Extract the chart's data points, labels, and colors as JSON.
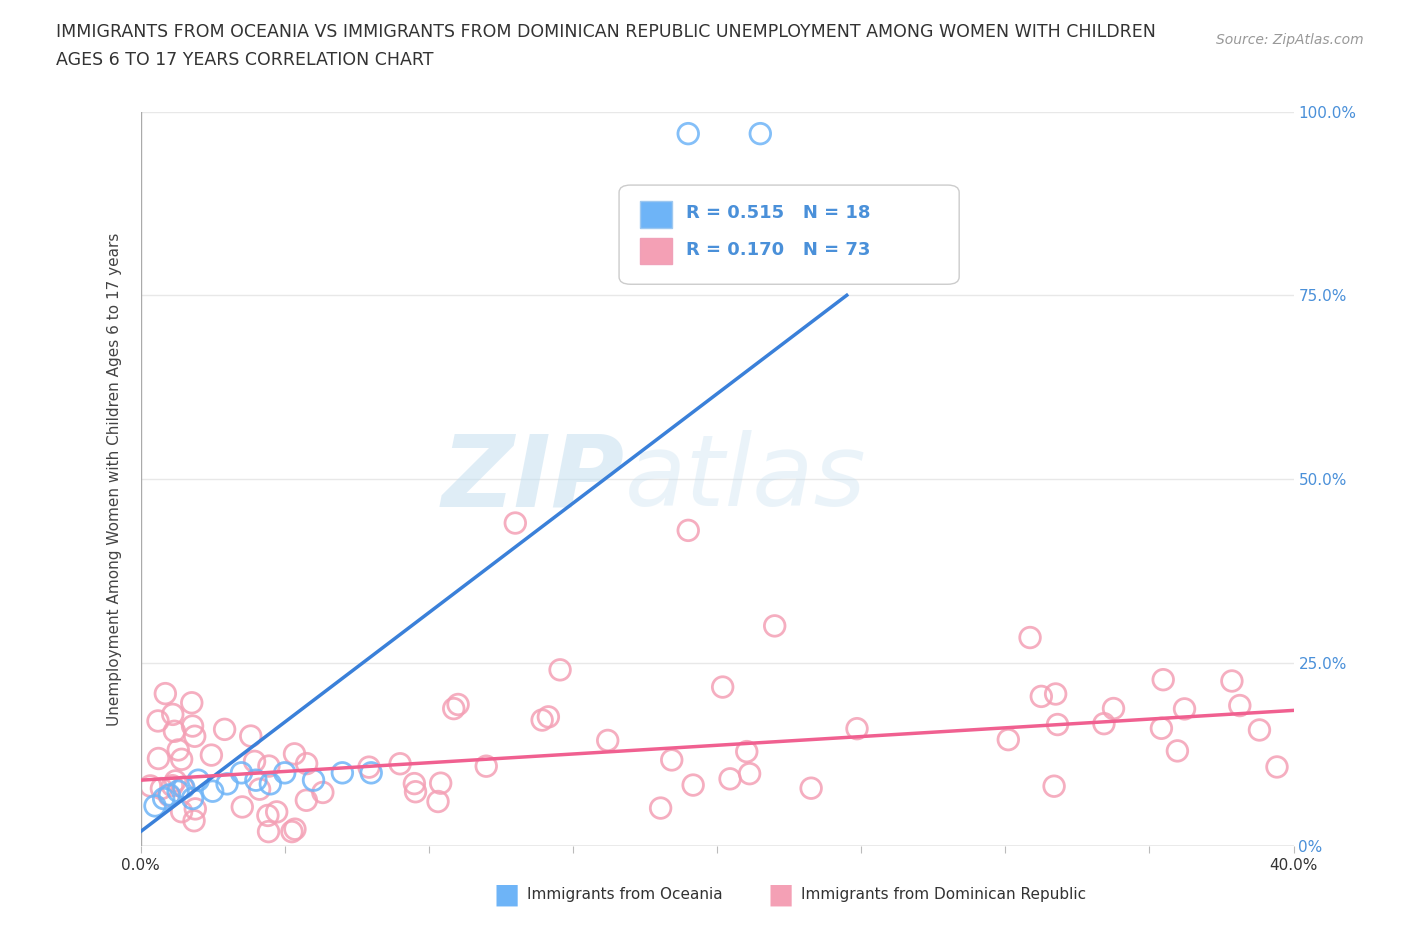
{
  "title_line1": "IMMIGRANTS FROM OCEANIA VS IMMIGRANTS FROM DOMINICAN REPUBLIC UNEMPLOYMENT AMONG WOMEN WITH CHILDREN",
  "title_line2": "AGES 6 TO 17 YEARS CORRELATION CHART",
  "source_text": "Source: ZipAtlas.com",
  "ylabel": "Unemployment Among Women with Children Ages 6 to 17 years",
  "xlim": [
    0.0,
    0.4
  ],
  "ylim": [
    0.0,
    1.0
  ],
  "watermark_zip": "ZIP",
  "watermark_atlas": "atlas",
  "legend_blue_R": "0.515",
  "legend_blue_N": "18",
  "legend_pink_R": "0.170",
  "legend_pink_N": "73",
  "blue_color": "#6eb4f7",
  "pink_color": "#f4a0b5",
  "trend_blue_color": "#3a80d9",
  "trend_pink_color": "#f06090",
  "background_color": "#ffffff",
  "grid_color": "#e8e8e8",
  "right_tick_color": "#4a90d9"
}
